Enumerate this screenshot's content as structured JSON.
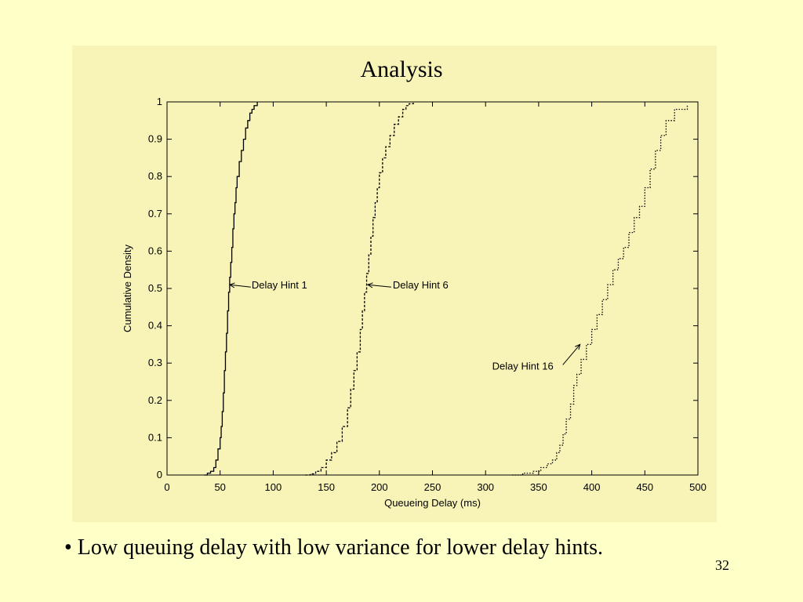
{
  "slide": {
    "bullet": "• Low queuing delay with low variance for lower delay hints.",
    "page_number": "32",
    "background": "#FFFFC8",
    "panel_background": "#F8F4B8"
  },
  "chart_data": {
    "type": "line",
    "title": "Analysis",
    "xlabel": "Queueing Delay (ms)",
    "ylabel": "Cumulative Density",
    "xlim": [
      0,
      500
    ],
    "ylim": [
      0,
      1
    ],
    "xticks": [
      0,
      50,
      100,
      150,
      200,
      250,
      300,
      350,
      400,
      450,
      500
    ],
    "yticks": [
      0,
      0.1,
      0.2,
      0.3,
      0.4,
      0.5,
      0.6,
      0.7,
      0.8,
      0.9,
      1
    ],
    "ytick_labels": [
      "0",
      "0.1",
      "0.2",
      "0.3",
      "0.4",
      "0.5",
      "0.6",
      "0.7",
      "0.8",
      "0.9",
      "1"
    ],
    "grid": false,
    "step": true,
    "annotations": [
      {
        "text": "Delay Hint 1",
        "point": [
          59,
          0.51
        ]
      },
      {
        "text": "Delay Hint 6",
        "point": [
          189,
          0.51
        ]
      },
      {
        "text": "Delay Hint 16",
        "point": [
          389,
          0.35
        ]
      }
    ],
    "series": [
      {
        "line_style": "solid",
        "x": [
          35,
          38,
          41,
          44,
          46,
          48,
          50,
          51,
          52,
          53,
          54,
          55,
          56,
          57,
          58,
          59,
          60,
          61,
          62,
          63,
          64,
          65,
          66,
          68,
          70,
          72,
          74,
          76,
          78,
          80,
          82,
          85
        ],
        "y": [
          0,
          0.005,
          0.01,
          0.02,
          0.04,
          0.07,
          0.1,
          0.13,
          0.17,
          0.22,
          0.28,
          0.33,
          0.38,
          0.44,
          0.49,
          0.53,
          0.57,
          0.61,
          0.66,
          0.7,
          0.73,
          0.77,
          0.8,
          0.84,
          0.87,
          0.9,
          0.93,
          0.95,
          0.97,
          0.98,
          0.99,
          1.0
        ]
      },
      {
        "line_style": "dashed",
        "x": [
          130,
          135,
          140,
          145,
          150,
          155,
          160,
          165,
          170,
          173,
          176,
          179,
          182,
          184,
          186,
          188,
          190,
          192,
          194,
          196,
          198,
          200,
          203,
          206,
          210,
          214,
          218,
          222,
          225,
          228,
          232
        ],
        "y": [
          0,
          0.003,
          0.01,
          0.02,
          0.04,
          0.06,
          0.09,
          0.13,
          0.18,
          0.23,
          0.28,
          0.33,
          0.39,
          0.44,
          0.49,
          0.54,
          0.59,
          0.64,
          0.69,
          0.73,
          0.77,
          0.81,
          0.85,
          0.88,
          0.91,
          0.94,
          0.96,
          0.98,
          0.99,
          0.995,
          1.0
        ]
      },
      {
        "line_style": "dotted",
        "x": [
          325,
          335,
          345,
          352,
          358,
          363,
          367,
          370,
          373,
          376,
          380,
          383,
          386,
          390,
          395,
          400,
          405,
          410,
          415,
          420,
          425,
          430,
          435,
          440,
          445,
          450,
          455,
          460,
          465,
          470,
          478,
          490
        ],
        "y": [
          0,
          0.005,
          0.01,
          0.02,
          0.03,
          0.04,
          0.06,
          0.08,
          0.11,
          0.15,
          0.19,
          0.24,
          0.27,
          0.31,
          0.35,
          0.39,
          0.43,
          0.47,
          0.51,
          0.55,
          0.58,
          0.61,
          0.65,
          0.69,
          0.72,
          0.77,
          0.82,
          0.87,
          0.91,
          0.95,
          0.98,
          0.99
        ]
      }
    ]
  }
}
